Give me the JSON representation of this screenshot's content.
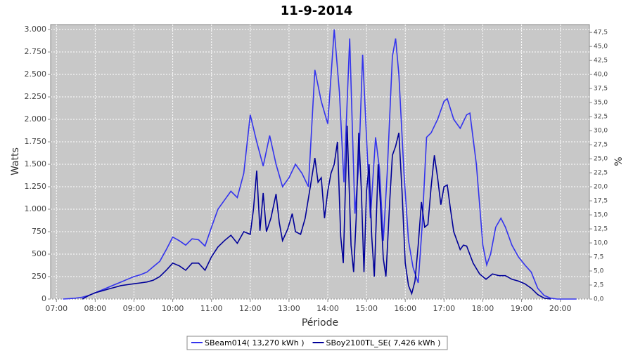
{
  "chart_data": {
    "type": "line",
    "title": "11-9-2014",
    "xlabel": "Période",
    "ylabel": "Watts",
    "y2label": "%",
    "xlim": [
      "06:51",
      "20:45"
    ],
    "xticks": [
      "07:00",
      "08:00",
      "09:00",
      "10:00",
      "11:00",
      "12:00",
      "13:00",
      "14:00",
      "15:00",
      "16:00",
      "17:00",
      "18:00",
      "19:00",
      "20:00"
    ],
    "ylim": [
      0,
      3055
    ],
    "yticks": [
      0,
      250,
      500,
      750,
      {
        "value": 1000,
        "label": "1.000"
      },
      {
        "value": 1250,
        "label": "1.250"
      },
      {
        "value": 1500,
        "label": "1.500"
      },
      {
        "value": 1750,
        "label": "1.750"
      },
      {
        "value": 2000,
        "label": "2.000"
      },
      {
        "value": 2250,
        "label": "2.250"
      },
      {
        "value": 2500,
        "label": "2.500"
      },
      {
        "value": 2750,
        "label": "2.750"
      },
      {
        "value": 3000,
        "label": "3.000"
      }
    ],
    "y2lim": [
      0,
      48.9
    ],
    "y2ticks": [
      {
        "value": 0,
        "label": "0,0"
      },
      {
        "value": 2.5,
        "label": "2,5"
      },
      {
        "value": 5,
        "label": "5,0"
      },
      {
        "value": 7.5,
        "label": "7,5"
      },
      {
        "value": 10,
        "label": "10,0"
      },
      {
        "value": 12.5,
        "label": "12,5"
      },
      {
        "value": 15,
        "label": "15,0"
      },
      {
        "value": 17.5,
        "label": "17,5"
      },
      {
        "value": 20,
        "label": "20,0"
      },
      {
        "value": 22.5,
        "label": "22,5"
      },
      {
        "value": 25,
        "label": "25,0"
      },
      {
        "value": 27.5,
        "label": "27,5"
      },
      {
        "value": 30,
        "label": "30,0"
      },
      {
        "value": 32.5,
        "label": "32,5"
      },
      {
        "value": 35,
        "label": "35,0"
      },
      {
        "value": 37.5,
        "label": "37,5"
      },
      {
        "value": 40,
        "label": "40,0"
      },
      {
        "value": 42.5,
        "label": "42,5"
      },
      {
        "value": 45,
        "label": "45,0"
      },
      {
        "value": 47.5,
        "label": "47,5"
      }
    ],
    "grid": true,
    "series": [
      {
        "name": "SBeam014( 13,270 kWh )",
        "color": "#3333ee",
        "x": [
          "07:10",
          "07:20",
          "07:30",
          "07:40",
          "07:50",
          "08:00",
          "08:10",
          "08:20",
          "08:30",
          "08:40",
          "08:50",
          "09:00",
          "09:10",
          "09:20",
          "09:30",
          "09:40",
          "09:50",
          "10:00",
          "10:10",
          "10:20",
          "10:30",
          "10:40",
          "10:50",
          "11:00",
          "11:10",
          "11:20",
          "11:30",
          "11:40",
          "11:50",
          "12:00",
          "12:10",
          "12:20",
          "12:30",
          "12:40",
          "12:50",
          "13:00",
          "13:10",
          "13:20",
          "13:30",
          "13:40",
          "13:50",
          "14:00",
          "14:10",
          "14:18",
          "14:25",
          "14:34",
          "14:42",
          "14:48",
          "14:54",
          "15:00",
          "15:06",
          "15:14",
          "15:20",
          "15:26",
          "15:32",
          "15:40",
          "15:45",
          "15:50",
          "15:58",
          "16:05",
          "16:12",
          "16:20",
          "16:26",
          "16:33",
          "16:40",
          "16:50",
          "17:00",
          "17:05",
          "17:15",
          "17:25",
          "17:35",
          "17:40",
          "17:50",
          "18:00",
          "18:06",
          "18:12",
          "18:20",
          "18:28",
          "18:35",
          "18:45",
          "18:55",
          "19:05",
          "19:15",
          "19:25",
          "19:35",
          "19:45",
          "19:55",
          "20:25"
        ],
        "values": [
          0,
          5,
          10,
          20,
          40,
          70,
          100,
          130,
          160,
          190,
          220,
          250,
          270,
          300,
          360,
          420,
          550,
          690,
          650,
          600,
          670,
          660,
          590,
          800,
          1000,
          1100,
          1200,
          1130,
          1400,
          2050,
          1750,
          1480,
          1820,
          1500,
          1250,
          1350,
          1500,
          1400,
          1250,
          2550,
          2200,
          1950,
          3000,
          2300,
          1300,
          2900,
          950,
          1500,
          2720,
          1800,
          900,
          1800,
          1450,
          650,
          1400,
          2700,
          2900,
          2500,
          1400,
          650,
          350,
          180,
          800,
          1800,
          1850,
          2000,
          2200,
          2230,
          2000,
          1900,
          2050,
          2070,
          1500,
          600,
          380,
          500,
          800,
          900,
          800,
          600,
          470,
          380,
          300,
          120,
          40,
          10,
          0,
          0
        ]
      },
      {
        "name": "SBoy2100TL_SE( 7,426 kWh )",
        "color": "#000099",
        "x": [
          "07:40",
          "07:50",
          "08:00",
          "08:10",
          "08:20",
          "08:30",
          "08:40",
          "08:50",
          "09:00",
          "09:10",
          "09:20",
          "09:30",
          "09:40",
          "09:50",
          "10:00",
          "10:10",
          "10:20",
          "10:30",
          "10:40",
          "10:50",
          "11:00",
          "11:10",
          "11:20",
          "11:30",
          "11:40",
          "11:50",
          "12:00",
          "12:05",
          "12:10",
          "12:15",
          "12:20",
          "12:25",
          "12:32",
          "12:40",
          "12:45",
          "12:50",
          "12:58",
          "13:05",
          "13:10",
          "13:18",
          "13:25",
          "13:33",
          "13:40",
          "13:45",
          "13:50",
          "13:55",
          "14:00",
          "14:05",
          "14:10",
          "14:15",
          "14:20",
          "14:24",
          "14:30",
          "14:36",
          "14:40",
          "14:44",
          "14:48",
          "14:52",
          "14:56",
          "15:00",
          "15:04",
          "15:08",
          "15:12",
          "15:18",
          "15:22",
          "15:26",
          "15:30",
          "15:36",
          "15:40",
          "15:45",
          "15:50",
          "15:55",
          "16:00",
          "16:05",
          "16:10",
          "16:15",
          "16:20",
          "16:25",
          "16:30",
          "16:35",
          "16:40",
          "16:45",
          "16:50",
          "16:55",
          "17:00",
          "17:05",
          "17:10",
          "17:15",
          "17:20",
          "17:25",
          "17:30",
          "17:35",
          "17:45",
          "17:55",
          "18:05",
          "18:15",
          "18:25",
          "18:35",
          "18:45",
          "18:55",
          "19:05",
          "19:15",
          "19:25",
          "19:35",
          "19:45"
        ],
        "values": [
          0,
          40,
          70,
          90,
          110,
          130,
          150,
          160,
          170,
          180,
          190,
          210,
          250,
          320,
          400,
          370,
          320,
          400,
          400,
          320,
          470,
          580,
          650,
          710,
          620,
          750,
          720,
          1000,
          1430,
          760,
          1180,
          750,
          900,
          1170,
          850,
          650,
          780,
          950,
          750,
          720,
          900,
          1250,
          1570,
          1300,
          1350,
          900,
          1200,
          1400,
          1500,
          1750,
          700,
          400,
          1930,
          600,
          300,
          900,
          1850,
          1200,
          300,
          1200,
          1500,
          700,
          250,
          1500,
          1000,
          450,
          250,
          1100,
          1600,
          1700,
          1850,
          1200,
          400,
          150,
          60,
          200,
          600,
          1080,
          800,
          830,
          1250,
          1600,
          1350,
          1050,
          1250,
          1270,
          1000,
          750,
          650,
          550,
          600,
          590,
          400,
          280,
          220,
          280,
          260,
          260,
          220,
          200,
          170,
          120,
          50,
          10,
          0
        ]
      }
    ]
  }
}
